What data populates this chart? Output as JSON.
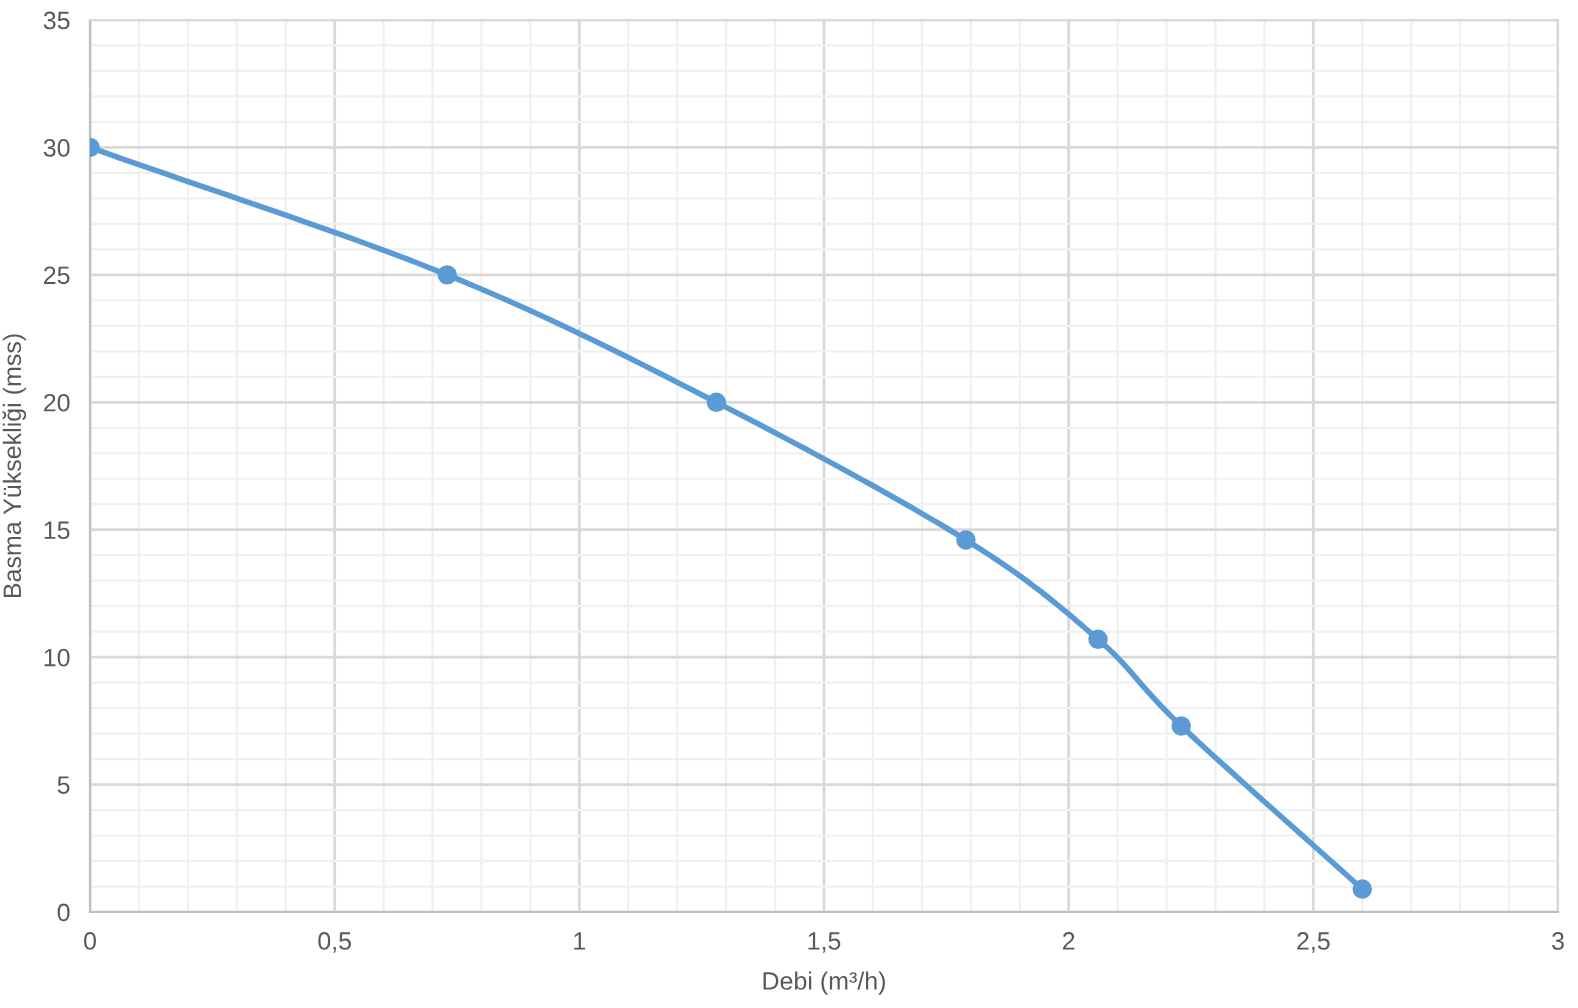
{
  "chart_data": {
    "type": "line",
    "xlabel": "Debi (m³/h)",
    "ylabel": "Basma Yüksekliği (mss)",
    "series": [
      {
        "color": "#5b9bd5",
        "x": [
          0,
          0.73,
          1.28,
          1.79,
          2.06,
          2.23,
          2.6
        ],
        "values": [
          30,
          25,
          20,
          14.6,
          10.7,
          7.3,
          0.9
        ]
      }
    ],
    "xlim": [
      0,
      3
    ],
    "xticks": [
      0,
      {
        "value": 0.5,
        "label": "0,5"
      },
      1,
      {
        "value": 1.5,
        "label": "1,5"
      },
      2,
      {
        "value": 2.5,
        "label": "2,5"
      },
      3
    ],
    "ylim": [
      0,
      35
    ],
    "yticks": [
      0,
      5,
      10,
      15,
      20,
      25,
      30,
      35
    ],
    "grid": true,
    "marker": "circle",
    "line_style": "solid"
  }
}
